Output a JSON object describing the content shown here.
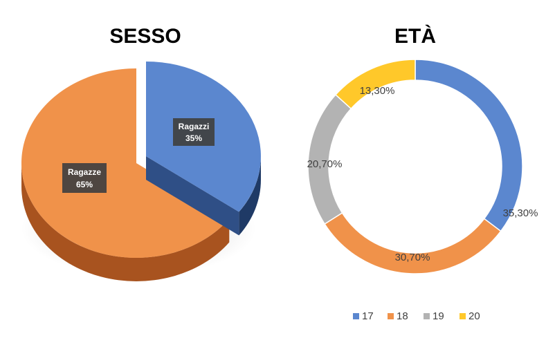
{
  "chart_data": [
    {
      "type": "pie",
      "title": "SESSO",
      "categories": [
        "Ragazzi",
        "Ragazze"
      ],
      "values": [
        35,
        65
      ],
      "value_labels": [
        "35%",
        "65%"
      ],
      "colors": [
        "#5b87cf",
        "#f0924a"
      ],
      "exploded": "Ragazzi",
      "style": "3d",
      "legend": "none"
    },
    {
      "type": "pie",
      "subtype": "donut",
      "title": "ETÀ",
      "categories": [
        "17",
        "18",
        "19",
        "20"
      ],
      "values": [
        35.3,
        30.7,
        20.7,
        13.3
      ],
      "value_labels": [
        "35,30%",
        "30,70%",
        "20,70%",
        "13,30%"
      ],
      "colors": [
        "#5b87cf",
        "#f0924a",
        "#b3b3b3",
        "#ffc82a"
      ],
      "legend": "bottom"
    }
  ]
}
